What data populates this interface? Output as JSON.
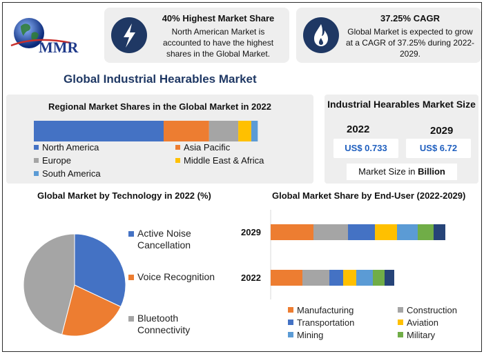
{
  "logo": {
    "text": "MMR"
  },
  "stat_cards": [
    {
      "title": "40% Highest Market Share",
      "text": "North American Market is accounted to have the highest shares in the Global Market.",
      "icon": "lightning-icon"
    },
    {
      "title": "37.25% CAGR",
      "text": "Global Market is expected to grow at a CAGR of 37.25% during 2022-2029.",
      "icon": "flame-icon"
    }
  ],
  "main_title": "Global Industrial Hearables Market",
  "size_panel": {
    "title": "Industrial Hearables Market Size",
    "year_a": "2022",
    "value_a": "US$ 0.733",
    "year_b": "2029",
    "value_b": "US$ 6.72",
    "note_prefix": "Market Size in ",
    "note_unit": "Billion"
  },
  "colors": {
    "north_america": "#4472c4",
    "asia_pacific": "#ed7d31",
    "europe": "#a5a5a5",
    "mea": "#ffc000",
    "south_america": "#5b9bd5",
    "construction": "#a5a5a5",
    "transportation": "#4472c4",
    "military": "#70ad47",
    "last_segment": "#264478"
  },
  "chart_data": [
    {
      "type": "bar",
      "orientation": "horizontal-stacked",
      "title": "Regional Market Shares in the Global Market in 2022",
      "series": [
        {
          "name": "North America",
          "values": [
            40
          ],
          "color": "#4472c4"
        },
        {
          "name": "Asia Pacific",
          "values": [
            14
          ],
          "color": "#ed7d31"
        },
        {
          "name": "Europe",
          "values": [
            9
          ],
          "color": "#a5a5a5"
        },
        {
          "name": "Middle East & Africa",
          "values": [
            4
          ],
          "color": "#ffc000"
        },
        {
          "name": "South America",
          "values": [
            2
          ],
          "color": "#5b9bd5"
        }
      ]
    },
    {
      "type": "pie",
      "title": "Global Market by Technology in 2022 (%)",
      "labels": [
        "Active Noise Cancellation",
        "Voice Recognition",
        "Bluetooth Connectivity"
      ],
      "values": [
        32,
        22,
        46
      ],
      "colors": [
        "#4472c4",
        "#ed7d31",
        "#a5a5a5"
      ]
    },
    {
      "type": "bar",
      "orientation": "horizontal-stacked",
      "title": "Global Market Share by End-User (2022-2029)",
      "categories": [
        "2029",
        "2022"
      ],
      "series": [
        {
          "name": "Manufacturing",
          "values": [
            62,
            46
          ],
          "color": "#ed7d31"
        },
        {
          "name": "Construction",
          "values": [
            50,
            39
          ],
          "color": "#a5a5a5"
        },
        {
          "name": "Transportation",
          "values": [
            39,
            20
          ],
          "color": "#4472c4"
        },
        {
          "name": "Aviation",
          "values": [
            32,
            19
          ],
          "color": "#ffc000"
        },
        {
          "name": "Mining",
          "values": [
            30,
            24
          ],
          "color": "#5b9bd5"
        },
        {
          "name": "Military",
          "values": [
            23,
            17
          ],
          "color": "#70ad47"
        },
        {
          "name": "",
          "values": [
            17,
            14
          ],
          "color": "#264478"
        }
      ]
    }
  ]
}
